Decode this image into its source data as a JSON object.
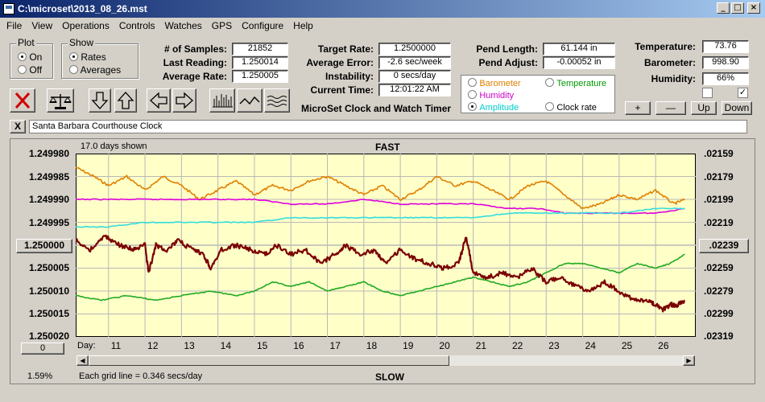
{
  "window": {
    "title": "C:\\microset\\2013_08_26.mst"
  },
  "menu": [
    "File",
    "View",
    "Operations",
    "Controls",
    "Watches",
    "GPS",
    "Configure",
    "Help"
  ],
  "plot_group": {
    "label": "Plot",
    "on": "On",
    "off": "Off",
    "selected": "On"
  },
  "show_group": {
    "label": "Show",
    "rates": "Rates",
    "averages": "Averages",
    "selected": "Rates"
  },
  "stats": {
    "samples_label": "# of Samples:",
    "samples": "21852",
    "last_reading_label": "Last Reading:",
    "last_reading": "1.250014",
    "average_rate_label": "Average Rate:",
    "average_rate": "1.250005",
    "target_rate_label": "Target Rate:",
    "target_rate": "1.2500000",
    "average_error_label": "Average Error:",
    "average_error": "-2.6 sec/week",
    "instability_label": "Instability:",
    "instability": "0 secs/day",
    "current_time_label": "Current Time:",
    "current_time": "12:01:22 AM",
    "pend_length_label": "Pend Length:",
    "pend_length": "61.144 in",
    "pend_adjust_label": "Pend Adjust:",
    "pend_adjust": "-0.00052 in",
    "temperature_label": "Temperature:",
    "temperature": "73.76",
    "barometer_label": "Barometer:",
    "barometer": "998.90",
    "humidity_label": "Humidity:",
    "humidity": "66%"
  },
  "app_caption": "MicroSet Clock and Watch Timer",
  "sensor_options": [
    {
      "label": "Barometer",
      "color": "#e08000",
      "selected": false
    },
    {
      "label": "Temperature",
      "color": "#009900",
      "selected": false
    },
    {
      "label": "Humidity",
      "color": "#cc00cc",
      "selected": false
    },
    {
      "label": "Amplitude",
      "color": "#00cccc",
      "selected": true
    },
    {
      "label": "Clock rate",
      "color": "#000000",
      "selected": false
    }
  ],
  "scale_buttons": {
    "plus": "+",
    "minus": "—",
    "up": "Up",
    "down": "Down"
  },
  "checkboxes": [
    {
      "checked": false
    },
    {
      "checked": true
    }
  ],
  "clock_name": "Santa Barbara Courthouse Clock",
  "close_x": "X",
  "chart_data": {
    "type": "line",
    "days_shown": "17.0 days shown",
    "top_label": "FAST",
    "bottom_label": "SLOW",
    "grid_note": "Each grid line = 0.346 secs/day",
    "percent": "1.59%",
    "x_prefix": "Day:",
    "x_ticks": [
      "11",
      "12",
      "13",
      "14",
      "15",
      "16",
      "17",
      "18",
      "19",
      "20",
      "21",
      "22",
      "23",
      "24",
      "25",
      "26"
    ],
    "x_range": [
      10.1,
      27.1
    ],
    "y_left_ticks": [
      "1.249980",
      "1.249985",
      "1.249990",
      "1.249995",
      "1.250000",
      "1.250005",
      "1.250010",
      "1.250015",
      "1.250020"
    ],
    "y_left_range": [
      1.24998,
      1.25002
    ],
    "y_left_center_button": "1.250000",
    "y_right_ticks": [
      ".02159",
      ".02179",
      ".02199",
      ".02219",
      ".02239",
      ".02259",
      ".02279",
      ".02299",
      ".02319"
    ],
    "y_right_center_button": ".02239",
    "bottom_left_button": "0",
    "plot_bg": "#ffffc8",
    "series": [
      {
        "name": "Barometer",
        "color": "#e08000",
        "points": [
          [
            10.1,
            1.249983
          ],
          [
            10.6,
            1.249985
          ],
          [
            11.0,
            1.249987
          ],
          [
            11.5,
            1.249985
          ],
          [
            12.0,
            1.249988
          ],
          [
            12.5,
            1.249985
          ],
          [
            13.0,
            1.249987
          ],
          [
            13.5,
            1.24999
          ],
          [
            14.0,
            1.249988
          ],
          [
            14.5,
            1.249986
          ],
          [
            15.0,
            1.249989
          ],
          [
            15.5,
            1.249987
          ],
          [
            16.0,
            1.249988
          ],
          [
            16.5,
            1.249986
          ],
          [
            17.0,
            1.249985
          ],
          [
            17.5,
            1.249987
          ],
          [
            18.0,
            1.249989
          ],
          [
            18.5,
            1.249987
          ],
          [
            19.0,
            1.24999
          ],
          [
            19.5,
            1.249988
          ],
          [
            20.0,
            1.249985
          ],
          [
            20.5,
            1.249987
          ],
          [
            21.0,
            1.249986
          ],
          [
            21.5,
            1.249988
          ],
          [
            22.0,
            1.24999
          ],
          [
            22.5,
            1.249987
          ],
          [
            23.0,
            1.249986
          ],
          [
            23.5,
            1.249989
          ],
          [
            24.0,
            1.249992
          ],
          [
            24.5,
            1.249991
          ],
          [
            25.0,
            1.249989
          ],
          [
            25.5,
            1.24999
          ],
          [
            26.0,
            1.249988
          ],
          [
            26.5,
            1.249991
          ],
          [
            26.8,
            1.24999
          ]
        ]
      },
      {
        "name": "Humidity",
        "color": "#dd00dd",
        "points": [
          [
            10.1,
            1.24999
          ],
          [
            11.0,
            1.24999
          ],
          [
            12.0,
            1.24999
          ],
          [
            13.0,
            1.24999
          ],
          [
            14.0,
            1.24999
          ],
          [
            15.0,
            1.24999
          ],
          [
            16.0,
            1.249991
          ],
          [
            17.0,
            1.249991
          ],
          [
            18.0,
            1.24999
          ],
          [
            19.0,
            1.249991
          ],
          [
            20.0,
            1.249991
          ],
          [
            21.0,
            1.249991
          ],
          [
            22.0,
            1.249992
          ],
          [
            22.8,
            1.249992
          ],
          [
            23.5,
            1.249993
          ],
          [
            24.0,
            1.249993
          ],
          [
            25.0,
            1.249993
          ],
          [
            26.0,
            1.249993
          ],
          [
            26.8,
            1.249992
          ]
        ]
      },
      {
        "name": "Amplitude",
        "color": "#33dddd",
        "points": [
          [
            10.1,
            1.249996
          ],
          [
            11.0,
            1.249996
          ],
          [
            12.0,
            1.249995
          ],
          [
            13.0,
            1.249995
          ],
          [
            14.0,
            1.249995
          ],
          [
            15.0,
            1.249995
          ],
          [
            16.0,
            1.249994
          ],
          [
            17.0,
            1.249994
          ],
          [
            18.0,
            1.249994
          ],
          [
            19.0,
            1.249994
          ],
          [
            20.0,
            1.249994
          ],
          [
            21.0,
            1.249994
          ],
          [
            22.0,
            1.249993
          ],
          [
            23.0,
            1.249993
          ],
          [
            24.0,
            1.249993
          ],
          [
            25.0,
            1.249993
          ],
          [
            26.0,
            1.249992
          ],
          [
            26.8,
            1.249992
          ]
        ]
      },
      {
        "name": "Temperature",
        "color": "#22aa22",
        "points": [
          [
            10.1,
            1.250011
          ],
          [
            10.8,
            1.250012
          ],
          [
            11.5,
            1.250011
          ],
          [
            12.3,
            1.250012
          ],
          [
            13.0,
            1.250011
          ],
          [
            13.8,
            1.25001
          ],
          [
            14.5,
            1.250011
          ],
          [
            15.0,
            1.25001
          ],
          [
            15.5,
            1.250008
          ],
          [
            16.0,
            1.250009
          ],
          [
            16.5,
            1.250008
          ],
          [
            17.0,
            1.25001
          ],
          [
            17.5,
            1.250009
          ],
          [
            18.0,
            1.250008
          ],
          [
            18.5,
            1.25001
          ],
          [
            19.0,
            1.250011
          ],
          [
            19.5,
            1.25001
          ],
          [
            20.0,
            1.250009
          ],
          [
            20.5,
            1.250008
          ],
          [
            21.0,
            1.250007
          ],
          [
            21.5,
            1.250008
          ],
          [
            22.0,
            1.250009
          ],
          [
            22.5,
            1.250008
          ],
          [
            23.0,
            1.250006
          ],
          [
            23.5,
            1.250004
          ],
          [
            24.0,
            1.250004
          ],
          [
            24.5,
            1.250005
          ],
          [
            25.0,
            1.250006
          ],
          [
            25.5,
            1.250004
          ],
          [
            26.0,
            1.250005
          ],
          [
            26.4,
            1.250004
          ],
          [
            26.8,
            1.250002
          ]
        ]
      },
      {
        "name": "Clock rate",
        "color": "#7a0000",
        "points": [
          [
            10.1,
            1.249999
          ],
          [
            10.5,
            1.250001
          ],
          [
            10.9,
            1.249998
          ],
          [
            11.3,
            1.25
          ],
          [
            11.7,
            1.250001
          ],
          [
            12.0,
            1.25
          ],
          [
            12.1,
            1.250006
          ],
          [
            12.3,
            1.25
          ],
          [
            12.6,
            1.250001
          ],
          [
            12.9,
            1.249999
          ],
          [
            13.3,
            1.250001
          ],
          [
            13.6,
            1.250002
          ],
          [
            13.8,
            1.250005
          ],
          [
            14.1,
            1.250001
          ],
          [
            14.5,
            1.25
          ],
          [
            14.9,
            1.250001
          ],
          [
            15.3,
            1.250002
          ],
          [
            15.6,
            1.25
          ],
          [
            16.0,
            1.250002
          ],
          [
            16.4,
            1.250001
          ],
          [
            16.8,
            1.250004
          ],
          [
            17.2,
            1.250002
          ],
          [
            17.5,
            1.25
          ],
          [
            17.9,
            1.250002
          ],
          [
            18.3,
            1.250001
          ],
          [
            18.6,
            1.250004
          ],
          [
            19.0,
            1.250001
          ],
          [
            19.4,
            1.250003
          ],
          [
            19.8,
            1.250004
          ],
          [
            20.2,
            1.250005
          ],
          [
            20.6,
            1.250004
          ],
          [
            20.8,
            1.249998
          ],
          [
            21.0,
            1.250006
          ],
          [
            21.4,
            1.250007
          ],
          [
            21.8,
            1.250006
          ],
          [
            22.2,
            1.250007
          ],
          [
            22.6,
            1.250005
          ],
          [
            23.0,
            1.250008
          ],
          [
            23.4,
            1.250007
          ],
          [
            23.8,
            1.250009
          ],
          [
            24.2,
            1.25001
          ],
          [
            24.6,
            1.250008
          ],
          [
            25.0,
            1.25001
          ],
          [
            25.4,
            1.250012
          ],
          [
            25.8,
            1.250012
          ],
          [
            26.0,
            1.250013
          ],
          [
            26.2,
            1.250014
          ],
          [
            26.4,
            1.250013
          ],
          [
            26.6,
            1.250013
          ],
          [
            26.8,
            1.250012
          ]
        ]
      }
    ]
  }
}
